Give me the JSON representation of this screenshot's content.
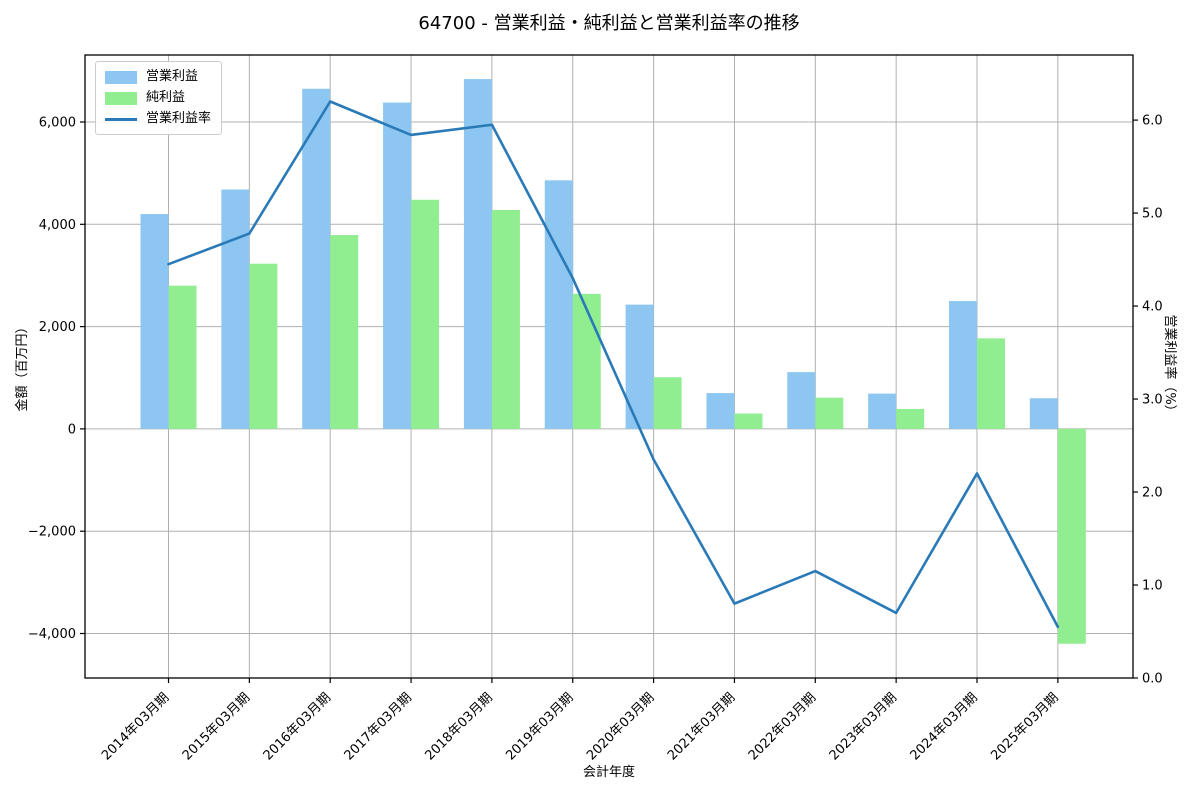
{
  "chart_data": {
    "type": "bar+line",
    "title": "64700 - 営業利益・純利益と営業利益率の推移",
    "x_label": "会計年度",
    "categories": [
      "2014年03月期",
      "2015年03月期",
      "2016年03月期",
      "2017年03月期",
      "2018年03月期",
      "2019年03月期",
      "2020年03月期",
      "2021年03月期",
      "2022年03月期",
      "2023年03月期",
      "2024年03月期",
      "2025年03月期"
    ],
    "series": [
      {
        "name": "営業利益",
        "type": "bar",
        "axis": "left",
        "color": "#8DC7F1",
        "values": [
          4200,
          4680,
          6650,
          6380,
          6840,
          4860,
          2430,
          700,
          1110,
          690,
          2500,
          600
        ]
      },
      {
        "name": "純利益",
        "type": "bar",
        "axis": "left",
        "color": "#90EE90",
        "values": [
          2800,
          3230,
          3790,
          4480,
          4280,
          2640,
          1010,
          300,
          610,
          390,
          1770,
          -4200
        ]
      },
      {
        "name": "営業利益率",
        "type": "line",
        "axis": "right",
        "color": "#2A7AB8",
        "values": [
          4.45,
          4.78,
          6.2,
          5.84,
          5.95,
          4.3,
          2.35,
          0.8,
          1.15,
          0.7,
          2.2,
          0.55
        ]
      }
    ],
    "y_left": {
      "label": "金額（百万円）",
      "lim": [
        -4870,
        7310
      ],
      "ticks": [
        6000,
        4000,
        2000,
        0,
        -2000,
        -4000
      ],
      "tick_labels": [
        "6,000",
        "4,000",
        "2,000",
        "0",
        "−2,000",
        "−4,000"
      ]
    },
    "y_right": {
      "label": "営業利益率（%）",
      "lim": [
        0,
        6.7
      ],
      "ticks": [
        6.0,
        5.0,
        4.0,
        3.0,
        2.0,
        1.0,
        0.0
      ],
      "tick_labels": [
        "6.0",
        "5.0",
        "4.0",
        "3.0",
        "2.0",
        "1.0",
        "0.0"
      ]
    },
    "grid": true,
    "legend_position": "upper left",
    "grid_color": "#B0B0B0",
    "background_color": "#FFFFFF"
  }
}
